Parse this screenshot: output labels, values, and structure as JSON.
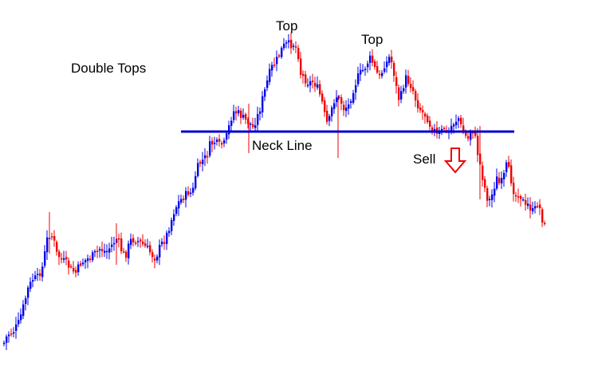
{
  "chart_data": {
    "type": "candlestick",
    "title": "Double Tops",
    "xlabel": "",
    "ylabel": "",
    "grid": false,
    "colors": {
      "up": "#0000ee",
      "down": "#ee0000",
      "neckline": "#0000cc",
      "arrow": "#ee0000"
    },
    "ylim": [
      0,
      469
    ],
    "close_path": [
      [
        0,
        440
      ],
      [
        8,
        420
      ],
      [
        16,
        415
      ],
      [
        22,
        405
      ],
      [
        28,
        385
      ],
      [
        34,
        362
      ],
      [
        40,
        350
      ],
      [
        46,
        348
      ],
      [
        52,
        335
      ],
      [
        58,
        300
      ],
      [
        62,
        292
      ],
      [
        66,
        300
      ],
      [
        70,
        318
      ],
      [
        76,
        325
      ],
      [
        82,
        330
      ],
      [
        88,
        338
      ],
      [
        94,
        342
      ],
      [
        100,
        330
      ],
      [
        108,
        325
      ],
      [
        116,
        320
      ],
      [
        124,
        312
      ],
      [
        132,
        316
      ],
      [
        140,
        306
      ],
      [
        146,
        298
      ],
      [
        150,
        312
      ],
      [
        156,
        322
      ],
      [
        162,
        302
      ],
      [
        168,
        300
      ],
      [
        176,
        305
      ],
      [
        184,
        312
      ],
      [
        190,
        320
      ],
      [
        194,
        324
      ],
      [
        200,
        308
      ],
      [
        206,
        300
      ],
      [
        212,
        282
      ],
      [
        218,
        262
      ],
      [
        224,
        252
      ],
      [
        230,
        246
      ],
      [
        236,
        240
      ],
      [
        240,
        244
      ],
      [
        244,
        220
      ],
      [
        248,
        206
      ],
      [
        254,
        200
      ],
      [
        258,
        196
      ],
      [
        262,
        182
      ],
      [
        268,
        178
      ],
      [
        274,
        182
      ],
      [
        280,
        180
      ],
      [
        284,
        168
      ],
      [
        288,
        150
      ],
      [
        292,
        140
      ],
      [
        298,
        142
      ],
      [
        304,
        148
      ],
      [
        308,
        152
      ],
      [
        312,
        154
      ],
      [
        316,
        160
      ],
      [
        320,
        150
      ],
      [
        324,
        140
      ],
      [
        328,
        124
      ],
      [
        332,
        110
      ],
      [
        336,
        94
      ],
      [
        340,
        84
      ],
      [
        344,
        80
      ],
      [
        348,
        70
      ],
      [
        352,
        62
      ],
      [
        356,
        56
      ],
      [
        360,
        55
      ],
      [
        364,
        56
      ],
      [
        368,
        55
      ],
      [
        372,
        62
      ],
      [
        376,
        92
      ],
      [
        380,
        98
      ],
      [
        386,
        104
      ],
      [
        392,
        102
      ],
      [
        398,
        112
      ],
      [
        404,
        132
      ],
      [
        408,
        156
      ],
      [
        412,
        150
      ],
      [
        416,
        132
      ],
      [
        420,
        120
      ],
      [
        426,
        126
      ],
      [
        430,
        136
      ],
      [
        436,
        132
      ],
      [
        442,
        112
      ],
      [
        448,
        96
      ],
      [
        452,
        90
      ],
      [
        456,
        86
      ],
      [
        460,
        78
      ],
      [
        464,
        72
      ],
      [
        468,
        84
      ],
      [
        472,
        92
      ],
      [
        476,
        98
      ],
      [
        480,
        82
      ],
      [
        484,
        78
      ],
      [
        488,
        70
      ],
      [
        492,
        86
      ],
      [
        496,
        110
      ],
      [
        500,
        128
      ],
      [
        504,
        110
      ],
      [
        508,
        98
      ],
      [
        512,
        104
      ],
      [
        516,
        110
      ],
      [
        520,
        124
      ],
      [
        524,
        134
      ],
      [
        528,
        140
      ],
      [
        534,
        146
      ],
      [
        538,
        156
      ],
      [
        544,
        164
      ],
      [
        548,
        172
      ],
      [
        552,
        166
      ],
      [
        556,
        160
      ],
      [
        560,
        168
      ],
      [
        566,
        156
      ],
      [
        570,
        152
      ],
      [
        574,
        148
      ],
      [
        578,
        162
      ],
      [
        582,
        170
      ],
      [
        586,
        174
      ],
      [
        590,
        160
      ],
      [
        594,
        168
      ],
      [
        598,
        192
      ],
      [
        602,
        212
      ],
      [
        606,
        232
      ],
      [
        610,
        248
      ],
      [
        614,
        252
      ],
      [
        618,
        236
      ],
      [
        622,
        224
      ],
      [
        626,
        232
      ],
      [
        630,
        224
      ],
      [
        634,
        208
      ],
      [
        638,
        216
      ],
      [
        642,
        236
      ],
      [
        646,
        246
      ],
      [
        650,
        242
      ],
      [
        654,
        250
      ],
      [
        658,
        260
      ],
      [
        662,
        256
      ],
      [
        666,
        266
      ],
      [
        670,
        262
      ],
      [
        674,
        252
      ],
      [
        678,
        272
      ],
      [
        682,
        284
      ]
    ],
    "annotations": [
      {
        "id": "top1",
        "text": "Top"
      },
      {
        "id": "top2",
        "text": "Top"
      },
      {
        "id": "neck",
        "text": "Neck Line"
      },
      {
        "id": "sell",
        "text": "Sell"
      }
    ]
  }
}
